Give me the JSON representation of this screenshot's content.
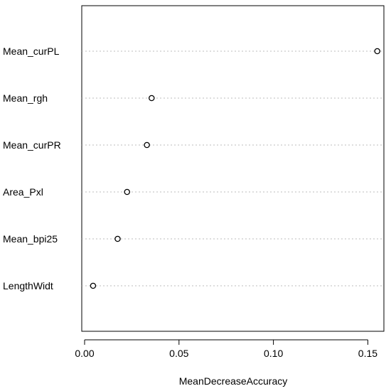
{
  "chart_data": {
    "type": "scatter",
    "title": "",
    "xlabel": "MeanDecreaseAccuracy",
    "ylabel": "",
    "categories": [
      "Mean_curPL",
      "Mean_rgh",
      "Mean_curPR",
      "Area_Pxl",
      "Mean_bpi25",
      "LengthWidt"
    ],
    "values": [
      0.155,
      0.0355,
      0.033,
      0.0225,
      0.0175,
      0.0045
    ],
    "xlim": [
      -0.0015,
      0.1585
    ],
    "xticks": [
      0.0,
      0.05,
      0.1,
      0.15
    ],
    "xtick_labels": [
      "0.00",
      "0.05",
      "0.10",
      "0.15"
    ],
    "grid": "dotted horizontal guide per category",
    "marker": "open circle",
    "colors": {
      "point": "#000000",
      "guide": "#bdbdbd",
      "axis": "#000000"
    }
  }
}
